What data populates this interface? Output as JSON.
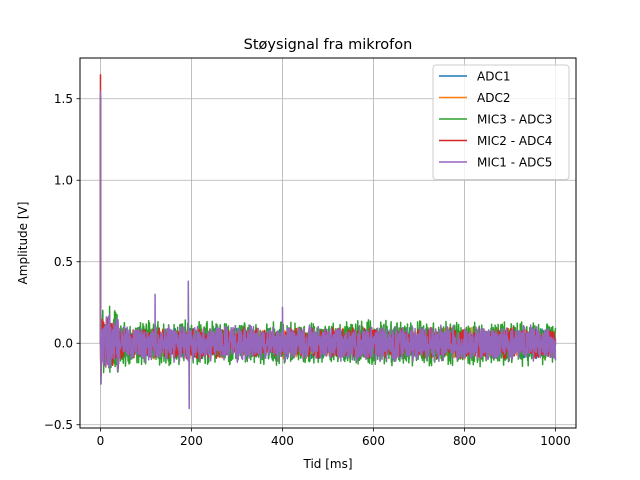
{
  "chart_data": {
    "type": "line",
    "title": "Støysignal fra mikrofon",
    "xlabel": "Tid [ms]",
    "ylabel": "Amplitude [V]",
    "xlim": [
      -45,
      1045
    ],
    "ylim": [
      -0.52,
      1.75
    ],
    "xticks": [
      0,
      200,
      400,
      600,
      800,
      1000
    ],
    "yticks": [
      -0.5,
      0.0,
      0.5,
      1.0,
      1.5
    ],
    "xtick_labels": [
      "0",
      "200",
      "400",
      "600",
      "800",
      "1000"
    ],
    "ytick_labels": [
      "−0.5",
      "0.0",
      "0.5",
      "1.0",
      "1.5"
    ],
    "grid": true,
    "legend_position": "top-right",
    "series": [
      {
        "name": "ADC1",
        "color": "#1f77b4",
        "spikes": [
          [
            0,
            1.52
          ],
          [
            1,
            -0.2
          ]
        ],
        "noise_amplitude": 0.1,
        "x_range": [
          0,
          1000
        ]
      },
      {
        "name": "ADC2",
        "color": "#ff7f0e",
        "spikes": [
          [
            0,
            1.48
          ],
          [
            1,
            -0.22
          ]
        ],
        "noise_amplitude": 0.1,
        "x_range": [
          0,
          1000
        ]
      },
      {
        "name": "MIC3 - ADC3",
        "color": "#2ca02c",
        "spikes": [
          [
            0,
            1.5
          ],
          [
            1,
            -0.25
          ],
          [
            195,
            -0.35
          ],
          [
            193,
            0.3
          ]
        ],
        "noise_amplitude": 0.15,
        "x_range": [
          0,
          1000
        ]
      },
      {
        "name": "MIC2 - ADC4",
        "color": "#d62728",
        "spikes": [
          [
            0,
            1.65
          ],
          [
            1,
            -0.2
          ]
        ],
        "noise_amplitude": 0.1,
        "x_range": [
          0,
          1000
        ]
      },
      {
        "name": "MIC1 - ADC5",
        "color": "#9467bd",
        "spikes": [
          [
            0,
            1.55
          ],
          [
            1,
            -0.25
          ],
          [
            193,
            0.38
          ],
          [
            195,
            -0.4
          ],
          [
            120,
            0.3
          ],
          [
            400,
            0.22
          ]
        ],
        "noise_amplitude": 0.12,
        "x_range": [
          0,
          1000
        ]
      }
    ]
  }
}
